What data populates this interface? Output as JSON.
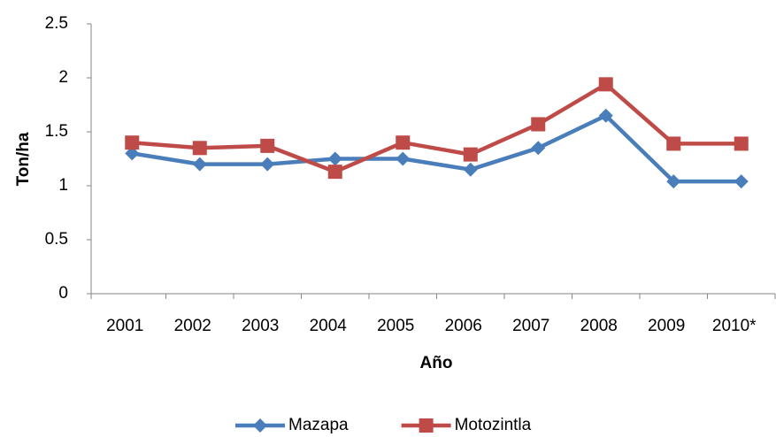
{
  "chart_data": {
    "type": "line",
    "x_label": "Año",
    "y_label": "Ton/ha",
    "categories": [
      "2001",
      "2002",
      "2003",
      "2004",
      "2005",
      "2006",
      "2007",
      "2008",
      "2009",
      "2010*"
    ],
    "series": [
      {
        "name": "Mazapa",
        "color": "#4a7ebb",
        "marker": "diamond",
        "values": [
          1.3,
          1.2,
          1.2,
          1.25,
          1.25,
          1.15,
          1.35,
          1.65,
          1.04,
          1.04
        ]
      },
      {
        "name": "Motozintla",
        "color": "#be4b48",
        "marker": "square",
        "values": [
          1.4,
          1.35,
          1.37,
          1.13,
          1.4,
          1.29,
          1.57,
          1.94,
          1.39,
          1.39
        ]
      }
    ],
    "ylim": [
      0,
      2.5
    ],
    "yticks": [
      0,
      0.5,
      1,
      1.5,
      2,
      2.5
    ],
    "grid": false,
    "legend": "bottom"
  }
}
